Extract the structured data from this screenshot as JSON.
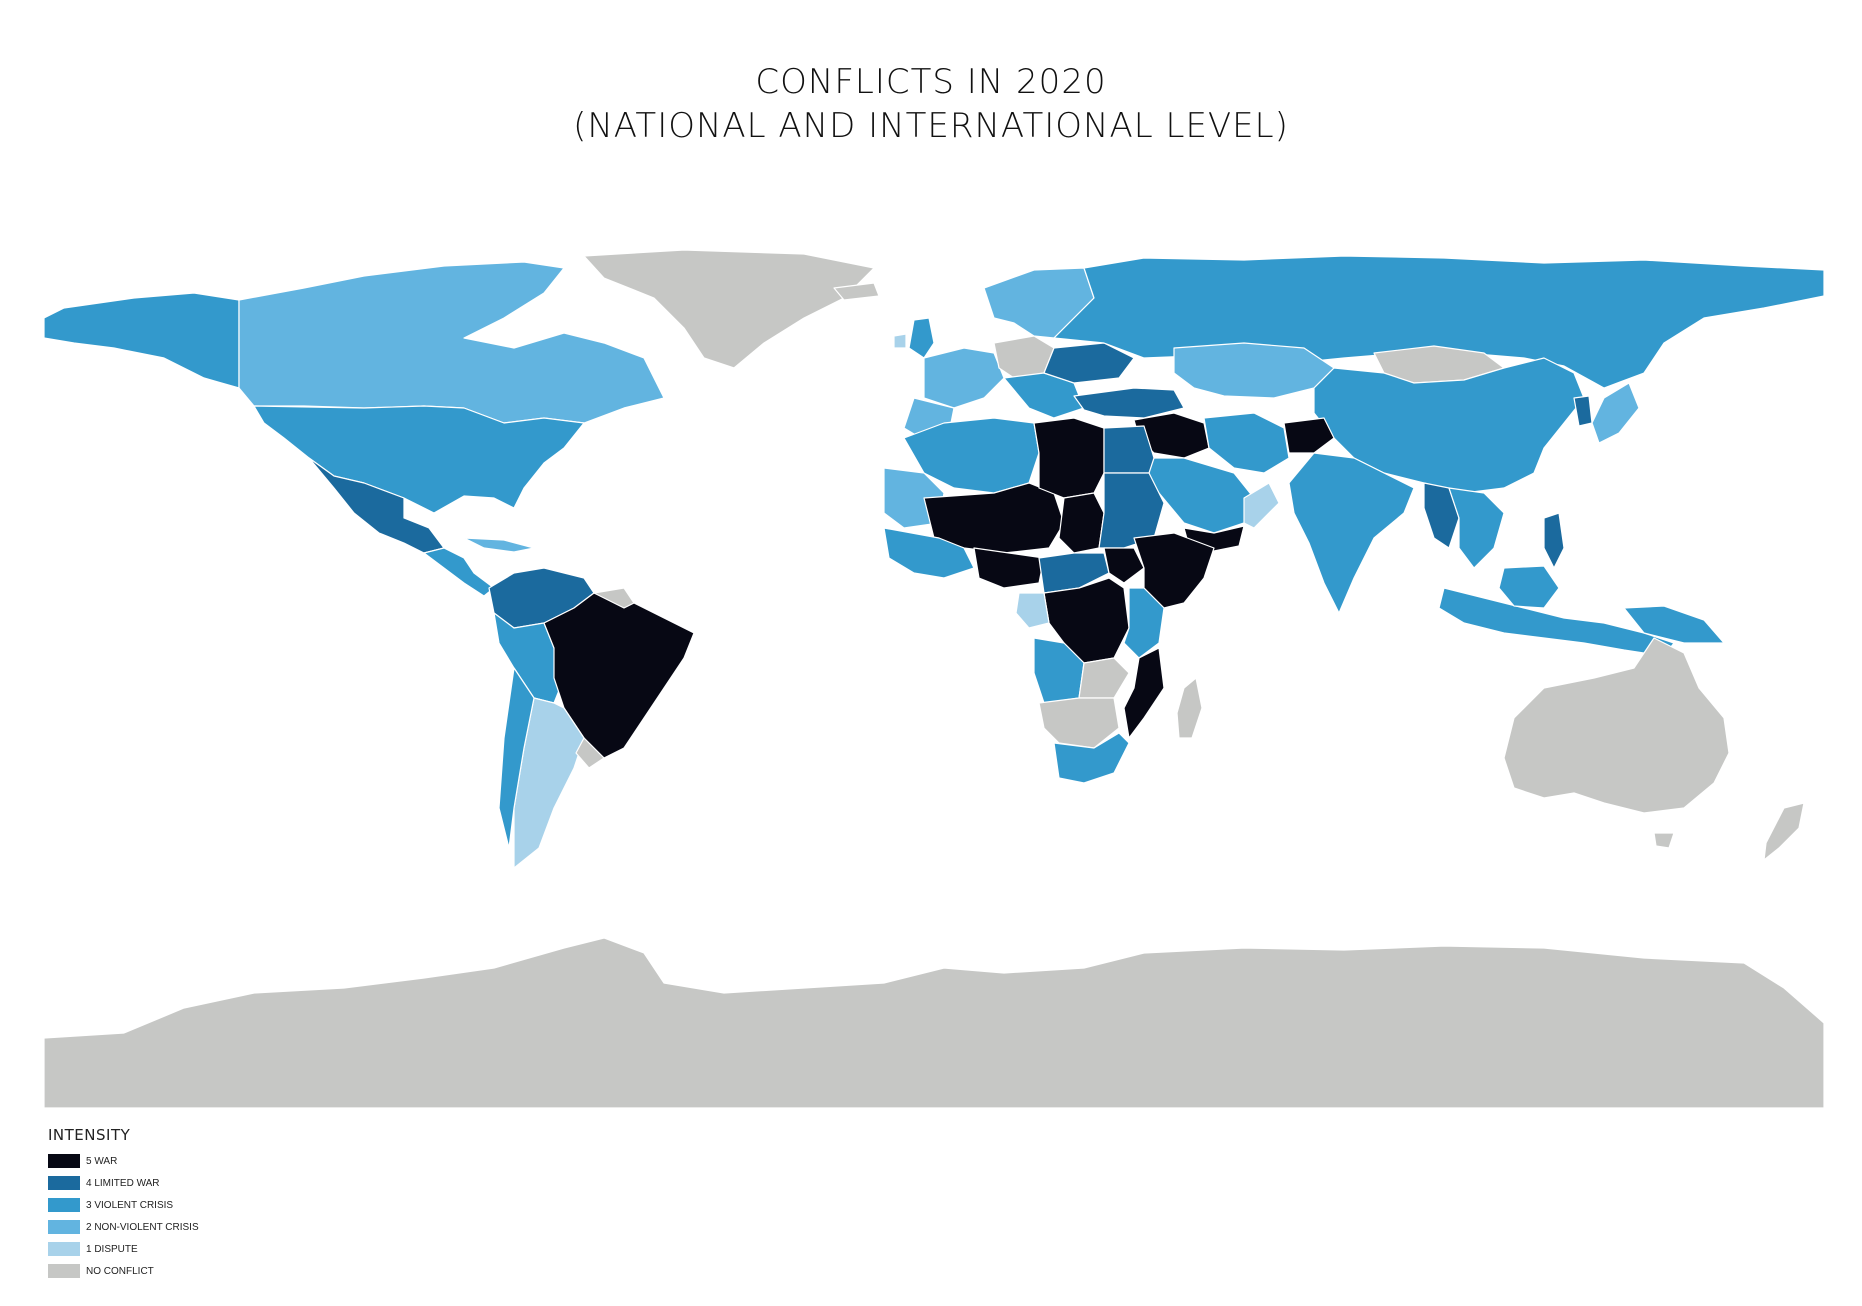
{
  "header": {
    "title_line1": "CONFLICTS IN 2020",
    "title_line2": "(NATIONAL AND INTERNATIONAL LEVEL)"
  },
  "legend": {
    "title": "INTENSITY",
    "items": [
      {
        "label": "5 WAR",
        "color": "#070814"
      },
      {
        "label": "4 LIMITED WAR",
        "color": "#1b6a9e"
      },
      {
        "label": "3 VIOLENT CRISIS",
        "color": "#3399cc"
      },
      {
        "label": "2 NON-VIOLENT CRISIS",
        "color": "#62b4e0"
      },
      {
        "label": "1 DISPUTE",
        "color": "#a8d2ea"
      },
      {
        "label": "NO CONFLICT",
        "color": "#c6c7c5"
      }
    ]
  },
  "map_colors": {
    "war": "#070814",
    "limited_war": "#1b6a9e",
    "violent_crisis": "#3399cc",
    "non_violent_crisis": "#62b4e0",
    "dispute": "#a8d2ea",
    "no_conflict": "#c6c7c5",
    "border": "#ffffff"
  }
}
